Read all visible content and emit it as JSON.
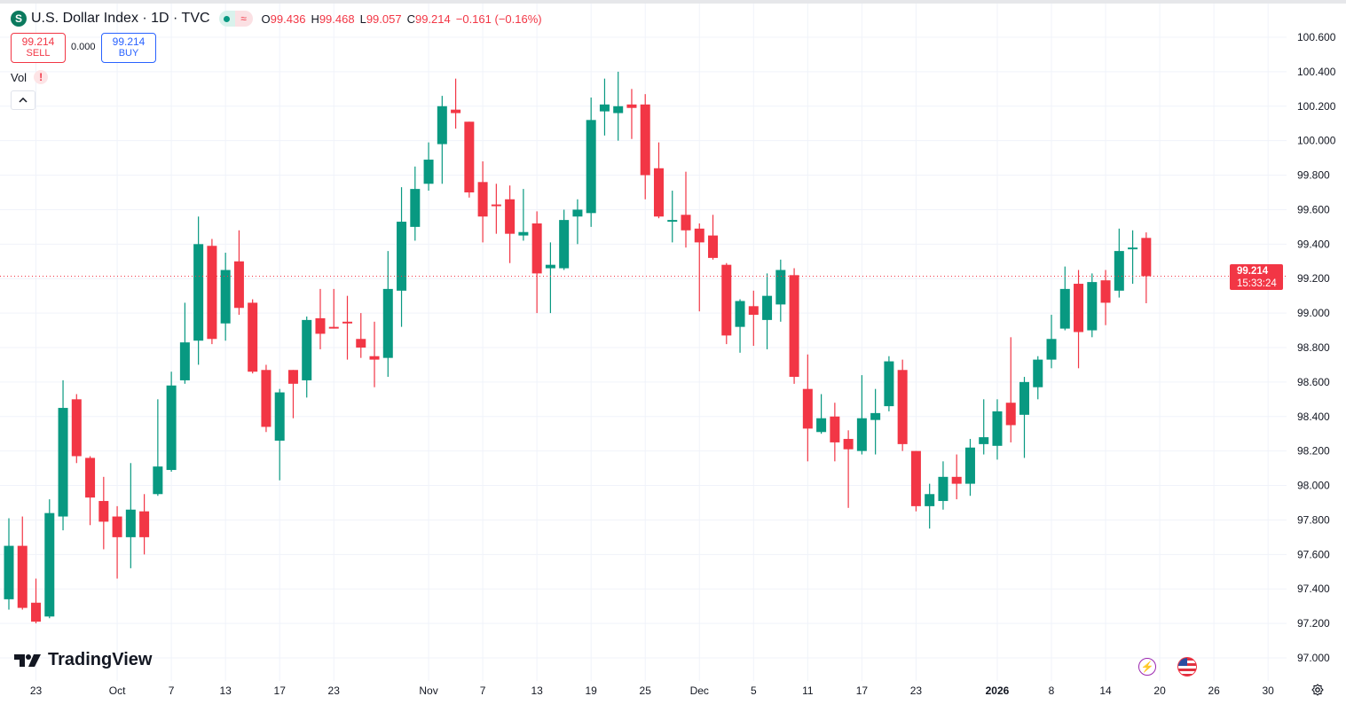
{
  "header": {
    "symbol_icon": "S",
    "title": "U.S. Dollar Index · 1D · TVC",
    "market_status_icon": "market-open-dot-icon",
    "delay_icon": "≈",
    "ohlc": {
      "o_label": "O",
      "o": "99.436",
      "h_label": "H",
      "h": "99.468",
      "l_label": "L",
      "l": "99.057",
      "c_label": "C",
      "c": "99.214"
    },
    "change": "−0.161 (−0.16%)"
  },
  "trade": {
    "sell_price": "99.214",
    "sell_label": "SELL",
    "spread": "0.000",
    "buy_price": "99.214",
    "buy_label": "BUY"
  },
  "volume": {
    "label": "Vol",
    "warning": "!"
  },
  "last_price": {
    "price": "99.214",
    "countdown": "15:33:24"
  },
  "brand": "TradingView",
  "colors": {
    "up": "#089981",
    "down": "#F23645",
    "grid": "#f0f3fa",
    "last_line": "#F23645"
  },
  "chart_data": {
    "type": "candlestick",
    "title": "U.S. Dollar Index · 1D · TVC",
    "ylim": [
      96.9,
      100.7
    ],
    "y_ticks": [
      "100.600",
      "100.400",
      "100.200",
      "100.000",
      "99.800",
      "99.600",
      "99.400",
      "99.200",
      "99.000",
      "98.800",
      "98.600",
      "98.400",
      "98.200",
      "98.000",
      "97.800",
      "97.600",
      "97.400",
      "97.200",
      "97.000"
    ],
    "x_ticks": [
      {
        "label": "23",
        "index": 2
      },
      {
        "label": "Oct",
        "index": 8,
        "bold": false
      },
      {
        "label": "7",
        "index": 12
      },
      {
        "label": "13",
        "index": 16
      },
      {
        "label": "17",
        "index": 20
      },
      {
        "label": "23",
        "index": 24
      },
      {
        "label": "Nov",
        "index": 31
      },
      {
        "label": "7",
        "index": 35
      },
      {
        "label": "13",
        "index": 39
      },
      {
        "label": "19",
        "index": 43
      },
      {
        "label": "25",
        "index": 47
      },
      {
        "label": "Dec",
        "index": 51
      },
      {
        "label": "5",
        "index": 55
      },
      {
        "label": "11",
        "index": 59
      },
      {
        "label": "17",
        "index": 63
      },
      {
        "label": "23",
        "index": 67
      },
      {
        "label": "2026",
        "index": 73,
        "bold": true
      },
      {
        "label": "8",
        "index": 77
      },
      {
        "label": "14",
        "index": 81
      },
      {
        "label": "20",
        "index": 85
      },
      {
        "label": "26",
        "index": 89
      },
      {
        "label": "30",
        "index": 93
      }
    ],
    "ohlc": [
      [
        97.34,
        97.81,
        97.28,
        97.65
      ],
      [
        97.65,
        97.82,
        97.28,
        97.29
      ],
      [
        97.32,
        97.46,
        97.2,
        97.21
      ],
      [
        97.24,
        97.92,
        97.23,
        97.84
      ],
      [
        97.82,
        98.61,
        97.74,
        98.45
      ],
      [
        98.5,
        98.53,
        98.13,
        98.17
      ],
      [
        98.16,
        98.17,
        97.77,
        97.93
      ],
      [
        97.91,
        98.05,
        97.63,
        97.79
      ],
      [
        97.82,
        97.88,
        97.46,
        97.7
      ],
      [
        97.7,
        98.13,
        97.52,
        97.86
      ],
      [
        97.85,
        97.95,
        97.6,
        97.7
      ],
      [
        97.95,
        98.5,
        97.94,
        98.11
      ],
      [
        98.09,
        98.66,
        98.08,
        98.58
      ],
      [
        98.61,
        99.06,
        98.59,
        98.83
      ],
      [
        98.84,
        99.56,
        98.7,
        99.4
      ],
      [
        99.39,
        99.43,
        98.82,
        98.85
      ],
      [
        98.94,
        99.35,
        98.84,
        99.25
      ],
      [
        99.3,
        99.48,
        98.99,
        99.03
      ],
      [
        99.06,
        99.08,
        98.65,
        98.66
      ],
      [
        98.67,
        98.7,
        98.31,
        98.34
      ],
      [
        98.26,
        98.56,
        98.03,
        98.54
      ],
      [
        98.67,
        98.67,
        98.39,
        98.59
      ],
      [
        98.61,
        98.98,
        98.51,
        98.96
      ],
      [
        98.97,
        99.14,
        98.79,
        98.88
      ],
      [
        98.92,
        99.14,
        98.91,
        98.91
      ],
      [
        98.95,
        99.1,
        98.73,
        98.94
      ],
      [
        98.85,
        99.0,
        98.74,
        98.8
      ],
      [
        98.75,
        98.95,
        98.57,
        98.73
      ],
      [
        98.74,
        99.36,
        98.63,
        99.14
      ],
      [
        99.13,
        99.73,
        98.92,
        99.53
      ],
      [
        99.5,
        99.85,
        99.42,
        99.72
      ],
      [
        99.75,
        99.99,
        99.71,
        99.89
      ],
      [
        99.98,
        100.26,
        99.75,
        100.2
      ],
      [
        100.18,
        100.36,
        100.07,
        100.16
      ],
      [
        100.11,
        100.11,
        99.67,
        99.7
      ],
      [
        99.76,
        99.88,
        99.41,
        99.56
      ],
      [
        99.63,
        99.75,
        99.46,
        99.62
      ],
      [
        99.66,
        99.74,
        99.29,
        99.46
      ],
      [
        99.45,
        99.72,
        99.42,
        99.47
      ],
      [
        99.52,
        99.59,
        99.0,
        99.23
      ],
      [
        99.26,
        99.41,
        99.0,
        99.28
      ],
      [
        99.26,
        99.6,
        99.25,
        99.54
      ],
      [
        99.56,
        99.66,
        99.4,
        99.6
      ],
      [
        99.58,
        100.25,
        99.5,
        100.12
      ],
      [
        100.17,
        100.36,
        100.03,
        100.21
      ],
      [
        100.16,
        100.4,
        100.0,
        100.2
      ],
      [
        100.21,
        100.3,
        100.01,
        100.19
      ],
      [
        100.21,
        100.27,
        99.66,
        99.8
      ],
      [
        99.84,
        99.99,
        99.55,
        99.56
      ],
      [
        99.53,
        99.71,
        99.41,
        99.54
      ],
      [
        99.57,
        99.82,
        99.38,
        99.48
      ],
      [
        99.49,
        99.52,
        99.01,
        99.41
      ],
      [
        99.45,
        99.57,
        99.31,
        99.32
      ],
      [
        99.28,
        99.29,
        98.82,
        98.87
      ],
      [
        98.92,
        99.08,
        98.77,
        99.07
      ],
      [
        99.04,
        99.13,
        98.81,
        98.99
      ],
      [
        98.96,
        99.23,
        98.79,
        99.1
      ],
      [
        99.05,
        99.31,
        98.95,
        99.25
      ],
      [
        99.22,
        99.26,
        98.59,
        98.63
      ],
      [
        98.56,
        98.76,
        98.14,
        98.33
      ],
      [
        98.31,
        98.53,
        98.3,
        98.39
      ],
      [
        98.4,
        98.48,
        98.14,
        98.25
      ],
      [
        98.27,
        98.32,
        97.87,
        98.21
      ],
      [
        98.2,
        98.64,
        98.18,
        98.39
      ],
      [
        98.38,
        98.56,
        98.18,
        98.42
      ],
      [
        98.46,
        98.75,
        98.43,
        98.72
      ],
      [
        98.67,
        98.73,
        98.2,
        98.24
      ],
      [
        98.2,
        98.2,
        97.85,
        97.88
      ],
      [
        97.88,
        98.01,
        97.75,
        97.95
      ],
      [
        97.91,
        98.14,
        97.86,
        98.05
      ],
      [
        98.05,
        98.18,
        97.92,
        98.01
      ],
      [
        98.01,
        98.27,
        97.94,
        98.22
      ],
      [
        98.24,
        98.5,
        98.18,
        98.28
      ],
      [
        98.23,
        98.5,
        98.15,
        98.43
      ],
      [
        98.48,
        98.86,
        98.25,
        98.35
      ],
      [
        98.41,
        98.63,
        98.16,
        98.6
      ],
      [
        98.57,
        98.75,
        98.5,
        98.73
      ],
      [
        98.73,
        98.99,
        98.68,
        98.85
      ],
      [
        98.91,
        99.27,
        98.9,
        99.14
      ],
      [
        99.17,
        99.25,
        98.68,
        98.89
      ],
      [
        98.9,
        99.23,
        98.86,
        99.18
      ],
      [
        99.19,
        99.25,
        98.93,
        99.06
      ],
      [
        99.13,
        99.49,
        99.09,
        99.36
      ],
      [
        99.37,
        99.48,
        99.17,
        99.38
      ],
      [
        99.436,
        99.468,
        99.057,
        99.214
      ]
    ],
    "last_close": 99.214
  }
}
